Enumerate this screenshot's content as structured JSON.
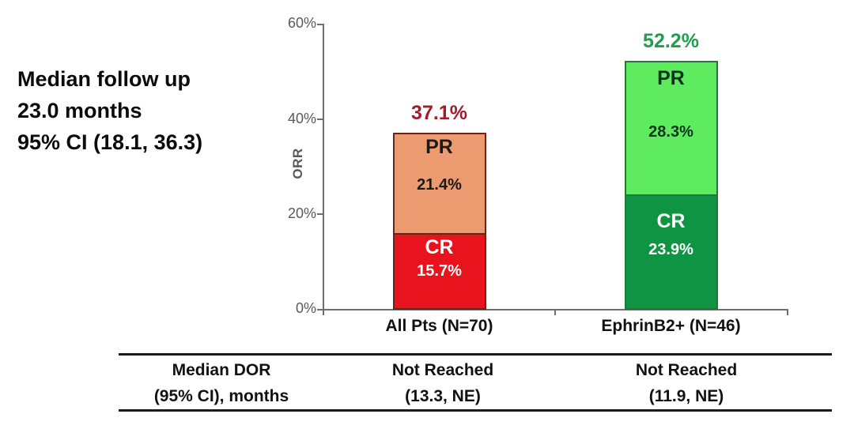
{
  "annotation": {
    "line1": "Median follow up",
    "line2": "23.0 months",
    "line3": "95% CI (18.1, 36.3)"
  },
  "chart_data": {
    "type": "bar",
    "stacked": true,
    "ylabel": "ORR",
    "ylim": [
      0,
      60
    ],
    "ytick_labels": [
      "0%",
      "20%",
      "40%",
      "60%"
    ],
    "categories": [
      "All Pts (N=70)",
      "EphrinB2+ (N=46)"
    ],
    "series": [
      {
        "name": "CR",
        "values": [
          15.7,
          23.9
        ],
        "labels": [
          "15.7%",
          "23.9%"
        ]
      },
      {
        "name": "PR",
        "values": [
          21.4,
          28.3
        ],
        "labels": [
          "21.4%",
          "28.3%"
        ]
      }
    ],
    "totals": [
      37.1,
      52.2
    ],
    "total_labels": [
      "37.1%",
      "52.2%"
    ],
    "legend": "none",
    "grid": false,
    "colors": {
      "all_pts": {
        "pr_fill": "#EC9B70",
        "cr_fill": "#E8131D",
        "border": "#6B2518",
        "total_label": "#A21C2A",
        "pr_text": "#1A1A1A",
        "cr_text": "#FFFFFF"
      },
      "ephrinb2": {
        "pr_fill": "#5FEB5F",
        "cr_fill": "#0E9442",
        "border": "#1C7A33",
        "total_label": "#1F9E4C",
        "pr_text": "#06341B",
        "cr_text": "#FFFFFF"
      },
      "axis": "#6E6E6E",
      "tick_text": "#595959"
    }
  },
  "table": {
    "header": {
      "line1": "Median DOR",
      "line2": "(95% CI), months"
    },
    "all_pts": {
      "line1": "Not Reached",
      "line2": "(13.3, NE)"
    },
    "ephrinb2": {
      "line1": "Not Reached",
      "line2": "(11.9, NE)"
    }
  }
}
